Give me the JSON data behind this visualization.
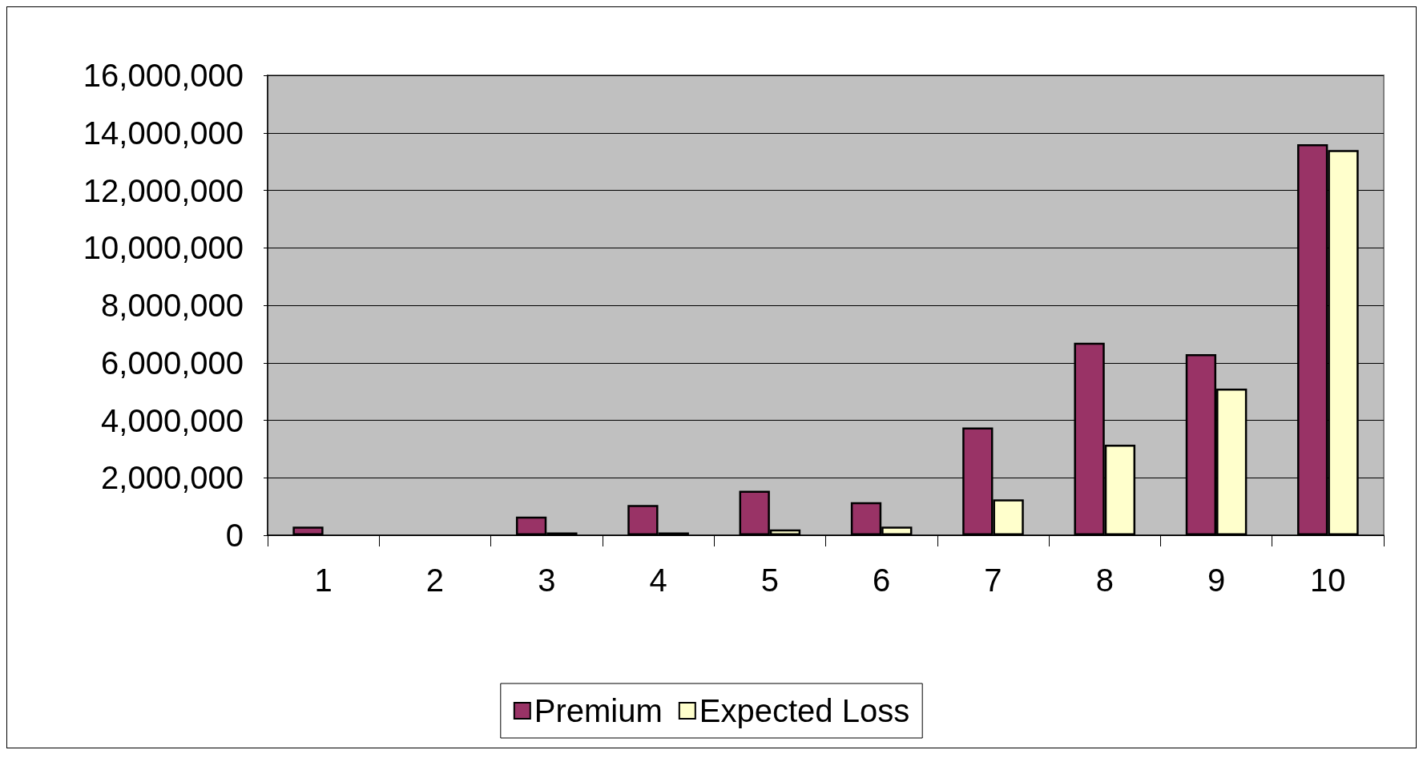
{
  "chart_data": {
    "type": "bar",
    "categories": [
      "1",
      "2",
      "3",
      "4",
      "5",
      "6",
      "7",
      "8",
      "9",
      "10"
    ],
    "series": [
      {
        "name": "Premium",
        "color": "#993366",
        "values": [
          300000,
          null,
          650000,
          1050000,
          1550000,
          1150000,
          3750000,
          6700000,
          6300000,
          13600000
        ]
      },
      {
        "name": "Expected Loss",
        "color": "#ffffcc",
        "values": [
          null,
          null,
          100000,
          100000,
          200000,
          300000,
          1250000,
          3150000,
          5100000,
          13400000
        ]
      }
    ],
    "ylim": [
      0,
      16000000
    ],
    "yticks": [
      0,
      {
        "value": 2000000,
        "label": "2,000,000"
      },
      {
        "value": 4000000,
        "label": "4,000,000"
      },
      {
        "value": 6000000,
        "label": "6,000,000"
      },
      {
        "value": 8000000,
        "label": "8,000,000"
      },
      {
        "value": 10000000,
        "label": "10,000,000"
      },
      {
        "value": 12000000,
        "label": "12,000,000"
      },
      {
        "value": 14000000,
        "label": "14,000,000"
      },
      {
        "value": 16000000,
        "label": "16,000,000"
      }
    ],
    "grid": "y",
    "legend": "bottom"
  }
}
